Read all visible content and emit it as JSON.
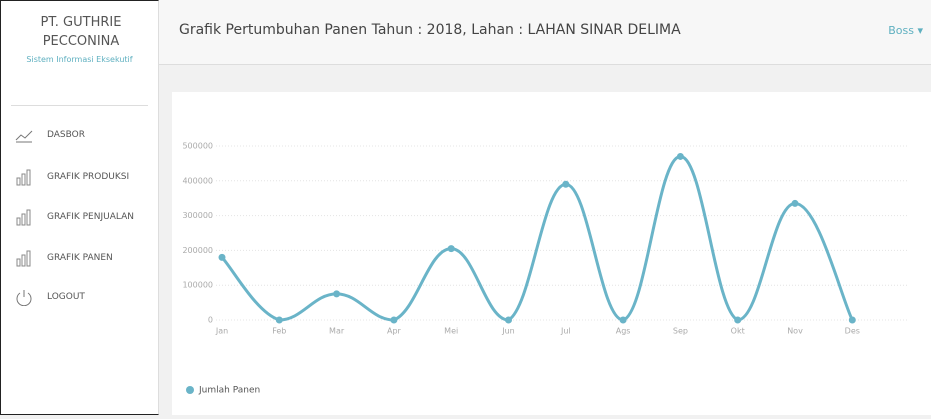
{
  "sidebar": {
    "company": "PT. GUTHRIE PECCONINA",
    "subtitle": "Sistem Informasi Eksekutif",
    "menu": [
      "DASBOR",
      "GRAFIK PRODUKSI",
      "GRAFIK PENJUALAN",
      "GRAFIK PANEN",
      "LOGOUT"
    ]
  },
  "header": {
    "title": "Grafik Pertumbuhan Panen Tahun : 2018, Lahan : LAHAN SINAR DELIMA",
    "user": "Boss"
  },
  "chart_data": {
    "type": "line",
    "categories": [
      "Jan",
      "Feb",
      "Mar",
      "Apr",
      "Mei",
      "Jun",
      "Jul",
      "Ags",
      "Sep",
      "Okt",
      "Nov",
      "Des"
    ],
    "series": [
      {
        "name": "Jumlah Panen",
        "color": "#6ab4c8",
        "values": [
          180000,
          0,
          75000,
          0,
          205000,
          0,
          390000,
          0,
          470000,
          0,
          335000,
          0
        ]
      }
    ],
    "ylim": [
      0,
      500000
    ],
    "yticks": [
      0,
      100000,
      200000,
      300000,
      400000,
      500000
    ],
    "grid": true,
    "legend": "bottom-left"
  }
}
